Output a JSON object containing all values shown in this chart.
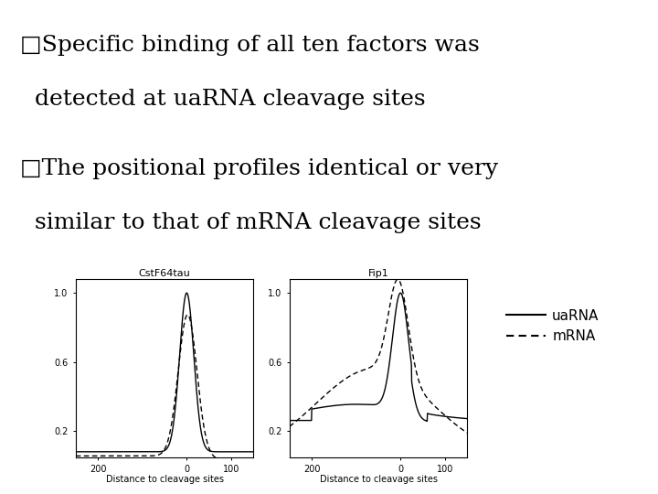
{
  "title1_line1": "□Specific binding of all ten factors was",
  "title1_line2": "  detected at uaRNA cleavage sites",
  "title2_line1": "□The positional profiles identical or very",
  "title2_line2": "  similar to that of mRNA cleavage sites",
  "plot1_title": "CstF64tau",
  "plot2_title": "Fip1",
  "xlabel": "Distance to cleavage sites",
  "yticks": [
    0.2,
    0.6,
    1.0
  ],
  "yticklabels": [
    "0.2",
    "0.6",
    "1.0"
  ],
  "xtick_vals": [
    -200,
    0,
    100
  ],
  "xtick_labels": [
    "200",
    "0",
    "100"
  ],
  "xlim": [
    -250,
    150
  ],
  "ylim": [
    0.05,
    1.08
  ],
  "legend_labels": [
    "uaRNA",
    "mRNA"
  ],
  "bg_color": "#ffffff",
  "bottom_bar_color": "#7fa3ab",
  "text_color": "#000000",
  "line_color": "#000000",
  "title_fontsize": 18,
  "axis_label_fontsize": 7,
  "tick_fontsize": 7,
  "plot_title_fontsize": 8,
  "legend_fontsize": 11
}
